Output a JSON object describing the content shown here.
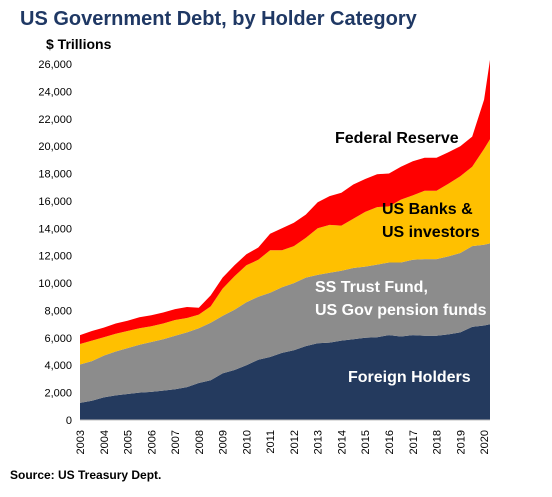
{
  "chart_data": {
    "type": "area",
    "stacked": true,
    "title": "US Government Debt, by Holder Category",
    "ylabel": "$ Trillions",
    "source": "Source: US Treasury Dept.",
    "ylim": [
      0,
      26000
    ],
    "yticks": [
      "0",
      "2,000",
      "4,000",
      "6,000",
      "8,000",
      "10,000",
      "12,000",
      "14,000",
      "16,000",
      "18,000",
      "20,000",
      "22,000",
      "24,000",
      "26,000"
    ],
    "xticks": [
      "2003",
      "2004",
      "2005",
      "2006",
      "2007",
      "2008",
      "2009",
      "2010",
      "2011",
      "2012",
      "2013",
      "2014",
      "2015",
      "2016",
      "2017",
      "2018",
      "2019",
      "2020"
    ],
    "x": [
      2003.0,
      2003.5,
      2004.0,
      2004.5,
      2005.0,
      2005.5,
      2006.0,
      2006.5,
      2007.0,
      2007.5,
      2008.0,
      2008.5,
      2009.0,
      2009.5,
      2010.0,
      2010.5,
      2011.0,
      2011.5,
      2012.0,
      2012.5,
      2013.0,
      2013.5,
      2014.0,
      2014.5,
      2015.0,
      2015.5,
      2016.0,
      2016.5,
      2017.0,
      2017.5,
      2018.0,
      2018.5,
      2019.0,
      2019.5,
      2020.0,
      2020.25
    ],
    "series": [
      {
        "name": "Foreign Holders",
        "color": "#243a5e",
        "values": [
          1250,
          1400,
          1650,
          1800,
          1900,
          2000,
          2050,
          2150,
          2250,
          2400,
          2700,
          2900,
          3400,
          3650,
          4000,
          4400,
          4600,
          4900,
          5100,
          5400,
          5600,
          5650,
          5800,
          5900,
          6000,
          6050,
          6200,
          6100,
          6200,
          6150,
          6150,
          6250,
          6400,
          6800,
          6900,
          7000
        ]
      },
      {
        "name": "SS Trust Fund, US Gov pension funds",
        "color": "#8c8c8c",
        "values": [
          2800,
          2900,
          3050,
          3200,
          3350,
          3500,
          3650,
          3750,
          3900,
          4000,
          4000,
          4200,
          4200,
          4400,
          4600,
          4600,
          4700,
          4800,
          4900,
          5000,
          5000,
          5100,
          5100,
          5200,
          5200,
          5300,
          5300,
          5400,
          5500,
          5600,
          5600,
          5700,
          5800,
          5900,
          5900,
          5900
        ]
      },
      {
        "name": "US Banks & US investors",
        "color": "#ffc000",
        "values": [
          1500,
          1500,
          1350,
          1300,
          1250,
          1200,
          1150,
          1150,
          1150,
          1050,
          1000,
          1200,
          2000,
          2450,
          2700,
          2700,
          3100,
          2700,
          2700,
          2900,
          3400,
          3500,
          3300,
          3600,
          4000,
          4200,
          4100,
          4600,
          4700,
          5000,
          5000,
          5300,
          5600,
          5800,
          7000,
          7600
        ]
      },
      {
        "name": "Federal Reserve",
        "color": "#ff0000",
        "values": [
          650,
          700,
          700,
          750,
          750,
          800,
          800,
          800,
          800,
          800,
          500,
          800,
          800,
          800,
          800,
          900,
          1200,
          1600,
          1700,
          1700,
          1900,
          2100,
          2400,
          2500,
          2400,
          2400,
          2400,
          2400,
          2500,
          2400,
          2400,
          2300,
          2200,
          2200,
          3600,
          5800
        ]
      }
    ],
    "labels": [
      "Federal Reserve",
      "US Banks &",
      "US investors",
      "SS Trust Fund,",
      "US Gov pension funds",
      "Foreign Holders"
    ]
  }
}
